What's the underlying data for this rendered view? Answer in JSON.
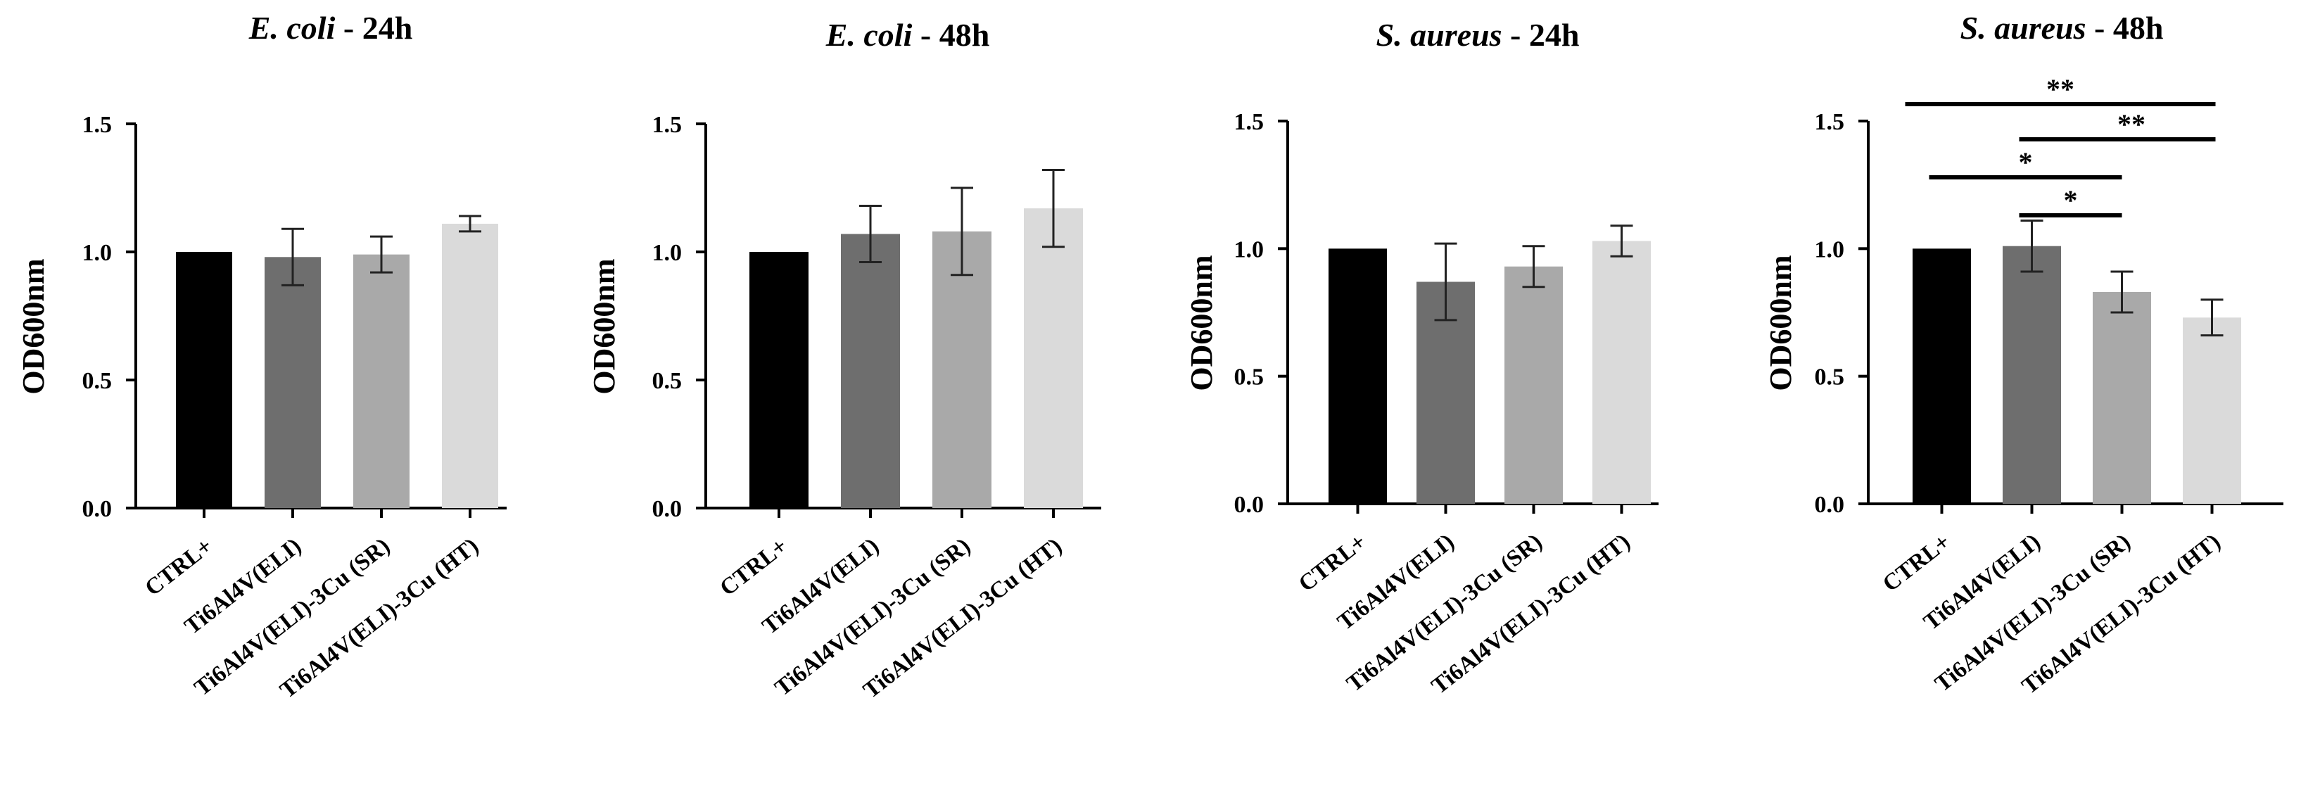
{
  "chart_data": [
    {
      "type": "bar",
      "title_italic": "E. coli",
      "title_suffix": " - 24h",
      "ylabel": "OD600nm",
      "ylim": [
        0,
        1.5
      ],
      "yticks": [
        "0.0",
        "0.5",
        "1.0",
        "1.5"
      ],
      "categories": [
        "CTRL+",
        "Ti6Al4V(ELI)",
        "Ti6Al4V(ELI)-3Cu (SR)",
        "Ti6Al4V(ELI)-3Cu (HT)"
      ],
      "values": [
        1.0,
        0.98,
        0.99,
        1.11
      ],
      "errors": [
        0,
        0.11,
        0.07,
        0.03
      ],
      "colors": [
        "#000000",
        "#6e6e6e",
        "#a9a9a9",
        "#dadada"
      ],
      "significance": []
    },
    {
      "type": "bar",
      "title_italic": "E. coli",
      "title_suffix": " - 48h",
      "ylabel": "OD600nm",
      "ylim": [
        0,
        1.5
      ],
      "yticks": [
        "0.0",
        "0.5",
        "1.0",
        "1.5"
      ],
      "categories": [
        "CTRL+",
        "Ti6Al4V(ELI)",
        "Ti6Al4V(ELI)-3Cu (SR)",
        "Ti6Al4V(ELI)-3Cu (HT)"
      ],
      "values": [
        1.0,
        1.07,
        1.08,
        1.17
      ],
      "errors": [
        0,
        0.11,
        0.17,
        0.15
      ],
      "colors": [
        "#000000",
        "#6e6e6e",
        "#a9a9a9",
        "#dadada"
      ],
      "significance": []
    },
    {
      "type": "bar",
      "title_italic": "S. aureus",
      "title_suffix": " - 24h",
      "ylabel": "OD600nm",
      "ylim": [
        0,
        1.5
      ],
      "yticks": [
        "0.0",
        "0.5",
        "1.0",
        "1.5"
      ],
      "categories": [
        "CTRL+",
        "Ti6Al4V(ELI)",
        "Ti6Al4V(ELI)-3Cu (SR)",
        "Ti6Al4V(ELI)-3Cu (HT)"
      ],
      "values": [
        1.0,
        0.87,
        0.93,
        1.03
      ],
      "errors": [
        0,
        0.15,
        0.08,
        0.06
      ],
      "colors": [
        "#000000",
        "#6e6e6e",
        "#a9a9a9",
        "#dadada"
      ],
      "significance": []
    },
    {
      "type": "bar",
      "title_italic": "S. aureus",
      "title_suffix": " - 48h",
      "ylabel": "OD600nm",
      "ylim": [
        0,
        1.5
      ],
      "yticks": [
        "0.0",
        "0.5",
        "1.0",
        "1.5"
      ],
      "categories": [
        "CTRL+",
        "Ti6Al4V(ELI)",
        "Ti6Al4V(ELI)-3Cu (SR)",
        "Ti6Al4V(ELI)-3Cu (HT)"
      ],
      "values": [
        1.0,
        1.01,
        0.83,
        0.73
      ],
      "errors": [
        0,
        0.1,
        0.08,
        0.07
      ],
      "colors": [
        "#000000",
        "#6e6e6e",
        "#a9a9a9",
        "#dadada"
      ],
      "significance": [
        {
          "from": 0,
          "to": 3,
          "label": "**"
        },
        {
          "from": 1,
          "to": 3,
          "label": "**"
        },
        {
          "from": 0,
          "to": 2,
          "label": "*"
        },
        {
          "from": 1,
          "to": 2,
          "label": "*"
        }
      ]
    }
  ]
}
